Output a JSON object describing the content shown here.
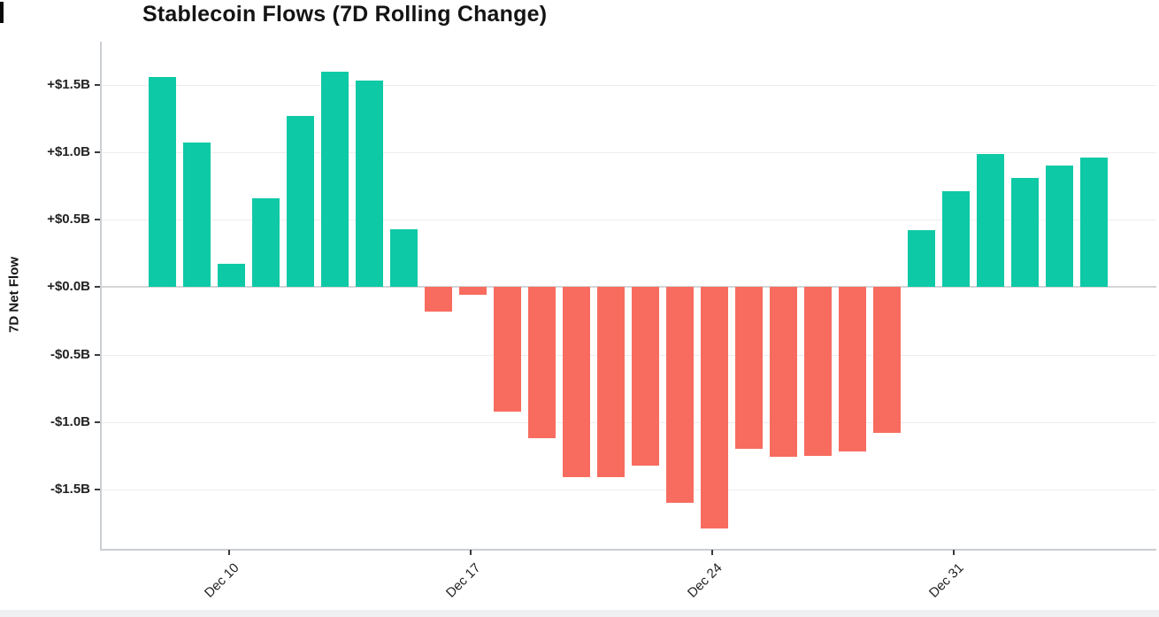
{
  "colors": {
    "positive_bar": "#0ec9a6",
    "negative_bar": "#f76c5f"
  },
  "chart_data": {
    "type": "bar",
    "title": "Stablecoin Flows (7D Rolling Change)",
    "xlabel": "",
    "ylabel": "7D Net Flow",
    "ylim": [
      -1.94,
      1.82
    ],
    "grid": true,
    "legend": false,
    "values": [
      1.56,
      1.07,
      0.17,
      0.66,
      1.27,
      1.6,
      1.53,
      0.43,
      -0.18,
      -0.06,
      -0.92,
      -1.12,
      -1.41,
      -1.41,
      -1.32,
      -1.6,
      -1.79,
      -1.2,
      -1.26,
      -1.25,
      -1.22,
      -1.08,
      0.42,
      0.71,
      0.99,
      0.81,
      0.9,
      0.96
    ],
    "value_unit": "$B",
    "bar_sign_colors": {
      "positive": "#0ec9a6",
      "negative": "#f76c5f"
    },
    "y_ticks": [
      {
        "value": 1.5,
        "label": "+$1.5B"
      },
      {
        "value": 1.0,
        "label": "+$1.0B"
      },
      {
        "value": 0.5,
        "label": "+$0.5B"
      },
      {
        "value": 0.0,
        "label": "+$0.0B"
      },
      {
        "value": -0.5,
        "label": "-$0.5B"
      },
      {
        "value": -1.0,
        "label": "-$1.0B"
      },
      {
        "value": -1.5,
        "label": "-$1.5B"
      }
    ],
    "x_ticks": [
      {
        "bar_index": 2,
        "label": "Dec 10"
      },
      {
        "bar_index": 9,
        "label": "Dec 17"
      },
      {
        "bar_index": 16,
        "label": "Dec 24"
      },
      {
        "bar_index": 23,
        "label": "Dec 31"
      }
    ]
  }
}
